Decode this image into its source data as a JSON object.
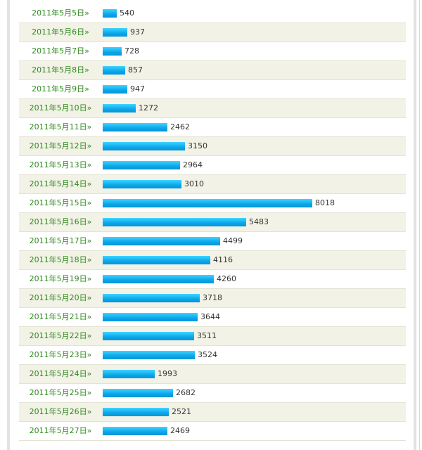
{
  "chart_data": {
    "type": "bar",
    "orientation": "horizontal",
    "categories": [
      "2011年5月5日»",
      "2011年5月6日»",
      "2011年5月7日»",
      "2011年5月8日»",
      "2011年5月9日»",
      "2011年5月10日»",
      "2011年5月11日»",
      "2011年5月12日»",
      "2011年5月13日»",
      "2011年5月14日»",
      "2011年5月15日»",
      "2011年5月16日»",
      "2011年5月17日»",
      "2011年5月18日»",
      "2011年5月19日»",
      "2011年5月20日»",
      "2011年5月21日»",
      "2011年5月22日»",
      "2011年5月23日»",
      "2011年5月24日»",
      "2011年5月25日»",
      "2011年5月26日»",
      "2011年5月27日»"
    ],
    "values": [
      540,
      937,
      728,
      857,
      947,
      1272,
      2462,
      3150,
      2964,
      3010,
      8018,
      5483,
      4499,
      4116,
      4260,
      3718,
      3644,
      3511,
      3524,
      1993,
      2682,
      2521,
      2469
    ],
    "bar_color": "#0aa7ea",
    "link_color": "#2f8a1f",
    "row_alt_color": "#f2f2e6"
  }
}
